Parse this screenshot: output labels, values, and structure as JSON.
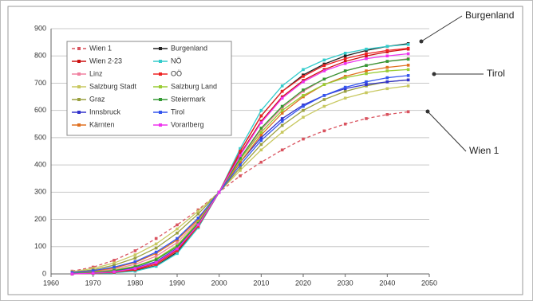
{
  "chart_data": {
    "type": "line",
    "x": [
      1965,
      1970,
      1975,
      1980,
      1985,
      1990,
      1995,
      2000,
      2005,
      2010,
      2015,
      2020,
      2025,
      2030,
      2035,
      2040,
      2045
    ],
    "xlim": [
      1960,
      2050
    ],
    "xticks": [
      1960,
      1970,
      1980,
      1990,
      2000,
      2010,
      2020,
      2030,
      2040,
      2050
    ],
    "ylim": [
      0,
      900
    ],
    "yticks": [
      0,
      100,
      200,
      300,
      400,
      500,
      600,
      700,
      800,
      900
    ],
    "grid": true,
    "series": [
      {
        "name": "Wien 1",
        "color": "#d9535f",
        "dashed": true,
        "values": [
          10,
          25,
          50,
          85,
          130,
          180,
          235,
          300,
          360,
          410,
          455,
          495,
          525,
          550,
          570,
          585,
          595
        ]
      },
      {
        "name": "Wien 2-23",
        "color": "#cc1111",
        "values": [
          0,
          3,
          8,
          18,
          40,
          90,
          180,
          300,
          440,
          560,
          650,
          710,
          750,
          780,
          800,
          815,
          825
        ]
      },
      {
        "name": "Linz",
        "color": "#f080a0",
        "values": [
          2,
          8,
          18,
          35,
          65,
          115,
          195,
          300,
          420,
          530,
          610,
          670,
          715,
          745,
          765,
          780,
          790
        ]
      },
      {
        "name": "Salzburg Stadt",
        "color": "#c8c860",
        "values": [
          8,
          20,
          40,
          70,
          110,
          165,
          230,
          300,
          380,
          455,
          520,
          575,
          615,
          645,
          665,
          680,
          690
        ]
      },
      {
        "name": "Graz",
        "color": "#9aa040",
        "values": [
          6,
          15,
          32,
          58,
          95,
          150,
          220,
          300,
          390,
          475,
          545,
          600,
          640,
          670,
          690,
          705,
          712
        ]
      },
      {
        "name": "Innsbruck",
        "color": "#3333cc",
        "values": [
          1,
          4,
          10,
          22,
          45,
          95,
          185,
          300,
          410,
          500,
          570,
          620,
          655,
          680,
          695,
          705,
          712
        ]
      },
      {
        "name": "Kärnten",
        "color": "#e07020",
        "values": [
          3,
          10,
          22,
          42,
          75,
          125,
          200,
          300,
          410,
          510,
          590,
          650,
          695,
          725,
          745,
          758,
          766
        ]
      },
      {
        "name": "Burgenland",
        "color": "#222222",
        "values": [
          0,
          2,
          5,
          12,
          30,
          80,
          170,
          300,
          450,
          580,
          670,
          730,
          770,
          800,
          820,
          835,
          845
        ]
      },
      {
        "name": "NÖ",
        "color": "#33cccc",
        "values": [
          0,
          1,
          4,
          10,
          28,
          75,
          170,
          300,
          460,
          600,
          690,
          750,
          785,
          810,
          825,
          835,
          842
        ]
      },
      {
        "name": "OÖ",
        "color": "#ee2222",
        "values": [
          0,
          2,
          6,
          15,
          35,
          85,
          175,
          300,
          450,
          580,
          670,
          725,
          765,
          790,
          808,
          820,
          828
        ]
      },
      {
        "name": "Salzburg Land",
        "color": "#99cc33",
        "values": [
          2,
          6,
          14,
          28,
          55,
          105,
          190,
          300,
          420,
          520,
          600,
          655,
          695,
          720,
          735,
          745,
          750
        ]
      },
      {
        "name": "Steiermark",
        "color": "#339933",
        "values": [
          1,
          5,
          12,
          26,
          52,
          100,
          185,
          300,
          425,
          535,
          615,
          675,
          715,
          745,
          765,
          780,
          788
        ]
      },
      {
        "name": "Tirol",
        "color": "#3355ee",
        "values": [
          5,
          12,
          25,
          45,
          80,
          130,
          205,
          300,
          400,
          490,
          560,
          615,
          655,
          685,
          705,
          720,
          728
        ]
      },
      {
        "name": "Vorarlberg",
        "color": "#ee33ee",
        "values": [
          0,
          3,
          8,
          20,
          42,
          92,
          180,
          300,
          435,
          555,
          645,
          705,
          745,
          772,
          790,
          800,
          808
        ]
      }
    ],
    "annotations": [
      "Burgenland",
      "Tirol",
      "Wien 1"
    ]
  }
}
